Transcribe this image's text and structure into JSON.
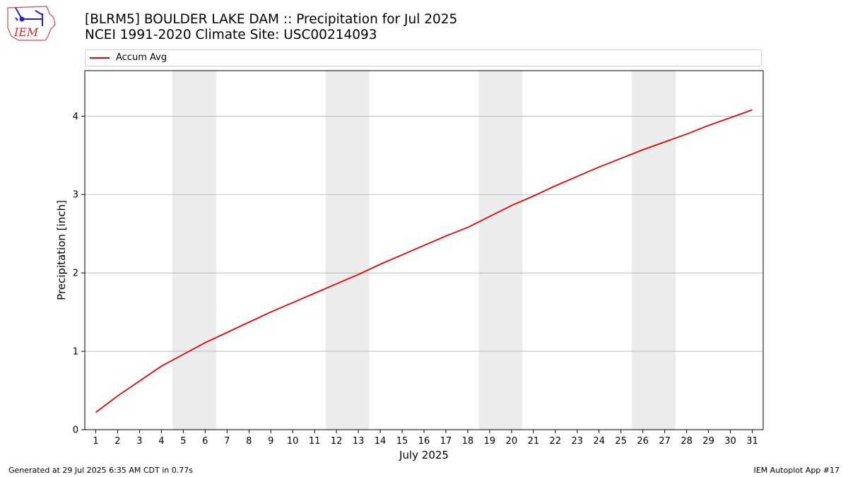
{
  "header": {
    "title_line1": "[BLRM5] BOULDER LAKE DAM :: Precipitation for Jul 2025",
    "title_line2": "NCEI 1991-2020 Climate Site: USC00214093"
  },
  "logo": {
    "text": "IEM"
  },
  "footer": {
    "generated": "Generated at 29 Jul 2025 6:35 AM CDT in 0.77s",
    "app": "IEM Autoplot App #17"
  },
  "colors": {
    "line": "#ee0000",
    "weekend_shade": "#ececec",
    "grid": "#b0b0b0"
  },
  "chart_data": {
    "type": "line",
    "title": "[BLRM5] BOULDER LAKE DAM :: Precipitation for Jul 2025",
    "subtitle": "NCEI 1991-2020 Climate Site: USC00214093",
    "xlabel": "July 2025",
    "ylabel": "Precipitation [inch]",
    "ylim": [
      0,
      4.58
    ],
    "xlim": [
      0.5,
      31.5
    ],
    "yticks": [
      0,
      1,
      2,
      3,
      4
    ],
    "grid": "y",
    "legend_position": "top",
    "shaded_day_ranges": [
      [
        4.5,
        6.5
      ],
      [
        11.5,
        13.5
      ],
      [
        18.5,
        20.5
      ],
      [
        25.5,
        27.5
      ]
    ],
    "x": [
      1,
      2,
      3,
      4,
      5,
      6,
      7,
      8,
      9,
      10,
      11,
      12,
      13,
      14,
      15,
      16,
      17,
      18,
      19,
      20,
      21,
      22,
      23,
      24,
      25,
      26,
      27,
      28,
      29,
      30,
      31
    ],
    "series": [
      {
        "name": "Accum Avg",
        "values": [
          0.22,
          0.43,
          0.62,
          0.81,
          0.96,
          1.11,
          1.24,
          1.37,
          1.5,
          1.62,
          1.74,
          1.86,
          1.98,
          2.11,
          2.23,
          2.35,
          2.47,
          2.58,
          2.72,
          2.86,
          2.98,
          3.11,
          3.23,
          3.35,
          3.46,
          3.57,
          3.67,
          3.77,
          3.88,
          3.98,
          4.08
        ]
      }
    ]
  }
}
